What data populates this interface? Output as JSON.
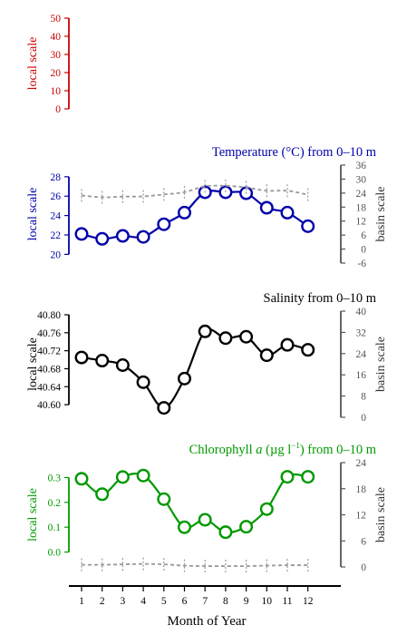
{
  "figure": {
    "xlabel": "Month of Year",
    "months": [
      "1",
      "2",
      "3",
      "4",
      "5",
      "6",
      "7",
      "8",
      "9",
      "10",
      "11",
      "12"
    ]
  },
  "chart_data": [
    {
      "type": "line",
      "title": "",
      "left_axis_label": "local scale",
      "right_axis_label": "",
      "color": "#cc0000",
      "left_ticks": [
        "50",
        "40",
        "30",
        "20",
        "10",
        "0"
      ],
      "left_tick_values": [
        50,
        40,
        30,
        20,
        10,
        0
      ],
      "ylim_left": [
        -4,
        54
      ],
      "right_ticks": [],
      "right_tick_values": [],
      "ylim_right": [
        0,
        1
      ],
      "x": [],
      "series": []
    },
    {
      "type": "line",
      "title": "Temperature (°C) from 0–10 m",
      "left_axis_label": "local scale",
      "right_axis_label": "basin scale",
      "color": "#0000aa",
      "left_ticks": [
        "28",
        "26",
        "24",
        "22",
        "20"
      ],
      "left_tick_values": [
        28,
        26,
        24,
        22,
        20
      ],
      "ylim_left": [
        19.1,
        29.2
      ],
      "right_ticks": [
        "36",
        "30",
        "24",
        "18",
        "12",
        "6",
        "0",
        "-6"
      ],
      "right_tick_values": [
        36,
        30,
        24,
        18,
        12,
        6,
        0,
        -6
      ],
      "ylim_right": [
        -6,
        36
      ],
      "x": [
        1,
        2,
        3,
        4,
        5,
        6,
        7,
        8,
        9,
        10,
        11,
        12
      ],
      "series": [
        {
          "name": "",
          "axis": "left",
          "style": "solid",
          "color": "#0000aa",
          "markers": true,
          "values": [
            22.1,
            21.6,
            21.9,
            21.8,
            23.1,
            24.3,
            26.4,
            26.4,
            26.3,
            24.8,
            24.3,
            22.9
          ]
        },
        {
          "name": "",
          "axis": "right",
          "style": "dashed",
          "color": "#999999",
          "markers": false,
          "values": [
            23.0,
            22.2,
            22.5,
            22.6,
            23.4,
            24.4,
            26.9,
            27.1,
            26.4,
            25.0,
            25.0,
            23.3
          ]
        }
      ]
    },
    {
      "type": "line",
      "title": "Salinity from 0–10 m",
      "left_axis_label": "local scale",
      "right_axis_label": "basin scale",
      "color": "#000000",
      "left_ticks": [
        "40.80",
        "40.76",
        "40.72",
        "40.68",
        "40.64",
        "40.60"
      ],
      "left_tick_values": [
        40.8,
        40.76,
        40.72,
        40.68,
        40.64,
        40.6
      ],
      "ylim_left": [
        40.572,
        40.808
      ],
      "right_ticks": [
        "40",
        "32",
        "24",
        "16",
        "8",
        "0"
      ],
      "right_tick_values": [
        40,
        32,
        24,
        16,
        8,
        0
      ],
      "ylim_right": [
        0,
        40
      ],
      "x": [
        1,
        2,
        3,
        4,
        5,
        6,
        7,
        8,
        9,
        10,
        11,
        12
      ],
      "series": [
        {
          "name": "",
          "axis": "left",
          "style": "solid",
          "color": "#000000",
          "markers": true,
          "values": [
            40.705,
            40.698,
            40.688,
            40.65,
            40.593,
            40.658,
            40.763,
            40.748,
            40.751,
            40.71,
            40.733,
            40.722
          ]
        }
      ]
    },
    {
      "type": "line",
      "title": "Chlorophyll a (µg l⁻¹) from 0–10 m",
      "title_parts": [
        "Chlorophyll ",
        "a",
        " (µg l",
        "−1",
        ") from 0–10 m"
      ],
      "left_axis_label": "local scale",
      "right_axis_label": "basin scale",
      "color": "#009900",
      "left_ticks": [
        "0.3",
        "0.2",
        "0.1",
        "0.0"
      ],
      "left_tick_values": [
        0.3,
        0.2,
        0.1,
        0.0
      ],
      "ylim_left": [
        -0.06,
        0.36
      ],
      "right_ticks": [
        "24",
        "18",
        "12",
        "6",
        "0"
      ],
      "right_tick_values": [
        24,
        18,
        12,
        6,
        0
      ],
      "ylim_right": [
        0,
        24
      ],
      "x": [
        1,
        2,
        3,
        4,
        5,
        6,
        7,
        8,
        9,
        10,
        11,
        12
      ],
      "series": [
        {
          "name": "",
          "axis": "left",
          "style": "solid",
          "color": "#009900",
          "markers": true,
          "values": [
            0.295,
            0.233,
            0.302,
            0.308,
            0.213,
            0.1,
            0.13,
            0.08,
            0.102,
            0.173,
            0.303,
            0.303
          ]
        },
        {
          "name": "",
          "axis": "right",
          "style": "dashed",
          "color": "#999999",
          "markers": false,
          "values": [
            0.5,
            0.5,
            0.6,
            0.7,
            0.6,
            0.3,
            0.2,
            0.2,
            0.2,
            0.3,
            0.4,
            0.4
          ]
        }
      ]
    }
  ]
}
